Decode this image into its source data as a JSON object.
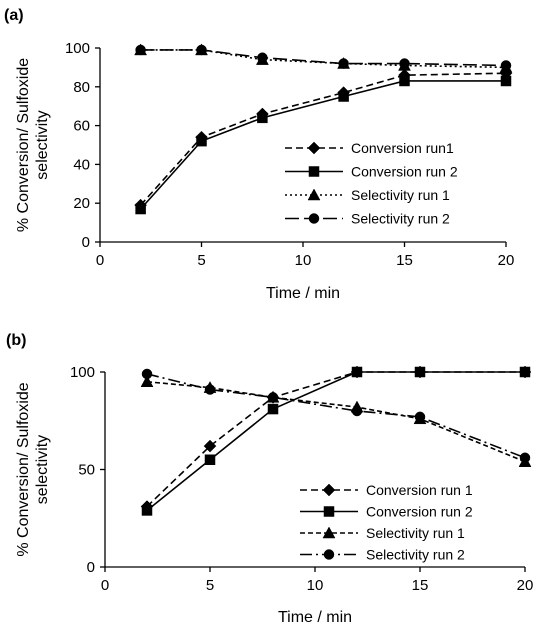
{
  "chart_data": [
    {
      "type": "line",
      "panel_label": "(a)",
      "xlabel": "Time / min",
      "ylabel": "% Conversion/ Sulfoxide selectivity",
      "ylabel_lines": [
        "% Conversion/ Sulfoxide",
        "selectivity"
      ],
      "xlim": [
        0,
        20
      ],
      "ylim": [
        0,
        100
      ],
      "xticks": [
        0,
        5,
        10,
        15,
        20
      ],
      "yticks": [
        0,
        20,
        40,
        60,
        80,
        100
      ],
      "grid": false,
      "legend_position": "bottom-right",
      "series": [
        {
          "name": "Conversion run1",
          "marker": "diamond",
          "dash": "7,4",
          "x": [
            2,
            5,
            8,
            12,
            15,
            20
          ],
          "y": [
            19,
            54,
            66,
            77,
            86,
            87
          ]
        },
        {
          "name": "Conversion run 2",
          "marker": "square",
          "dash": "",
          "x": [
            2,
            5,
            8,
            12,
            15,
            20
          ],
          "y": [
            17,
            52,
            64,
            75,
            83,
            83
          ]
        },
        {
          "name": "Selectivity run 1",
          "marker": "triangle",
          "dash": "2,3",
          "x": [
            2,
            5,
            8,
            12,
            15,
            20
          ],
          "y": [
            99,
            99,
            94,
            92,
            91,
            90
          ]
        },
        {
          "name": "Selectivity run 2",
          "marker": "circle",
          "dash": "14,5",
          "x": [
            2,
            5,
            8,
            12,
            15,
            20
          ],
          "y": [
            99,
            99,
            95,
            92,
            92,
            91
          ]
        }
      ]
    },
    {
      "type": "line",
      "panel_label": "(b)",
      "xlabel": "Time / min",
      "ylabel": "% Conversion/ Sulfoxide selectivity",
      "ylabel_lines": [
        "% Conversion/ Sulfoxide",
        "selectivity"
      ],
      "xlim": [
        0,
        20
      ],
      "ylim": [
        0,
        100
      ],
      "xticks": [
        0,
        5,
        10,
        15,
        20
      ],
      "yticks": [
        0,
        50,
        100
      ],
      "grid": false,
      "legend_position": "bottom-right",
      "series": [
        {
          "name": "Conversion run 1",
          "marker": "diamond",
          "dash": "7,4",
          "x": [
            2,
            5,
            8,
            12,
            15,
            20
          ],
          "y": [
            31,
            62,
            87,
            100,
            100,
            100
          ]
        },
        {
          "name": "Conversion run 2",
          "marker": "square",
          "dash": "",
          "x": [
            2,
            5,
            8,
            12,
            15,
            20
          ],
          "y": [
            29,
            55,
            81,
            100,
            100,
            100
          ]
        },
        {
          "name": "Selectivity run 1",
          "marker": "triangle",
          "dash": "5,3",
          "x": [
            2,
            5,
            8,
            12,
            15,
            20
          ],
          "y": [
            95,
            92,
            87,
            82,
            76,
            54
          ]
        },
        {
          "name": "Selectivity run 2",
          "marker": "circle",
          "dash": "12,4,2,4",
          "x": [
            2,
            5,
            8,
            12,
            15,
            20
          ],
          "y": [
            99,
            91,
            87,
            80,
            77,
            56
          ]
        }
      ]
    }
  ]
}
